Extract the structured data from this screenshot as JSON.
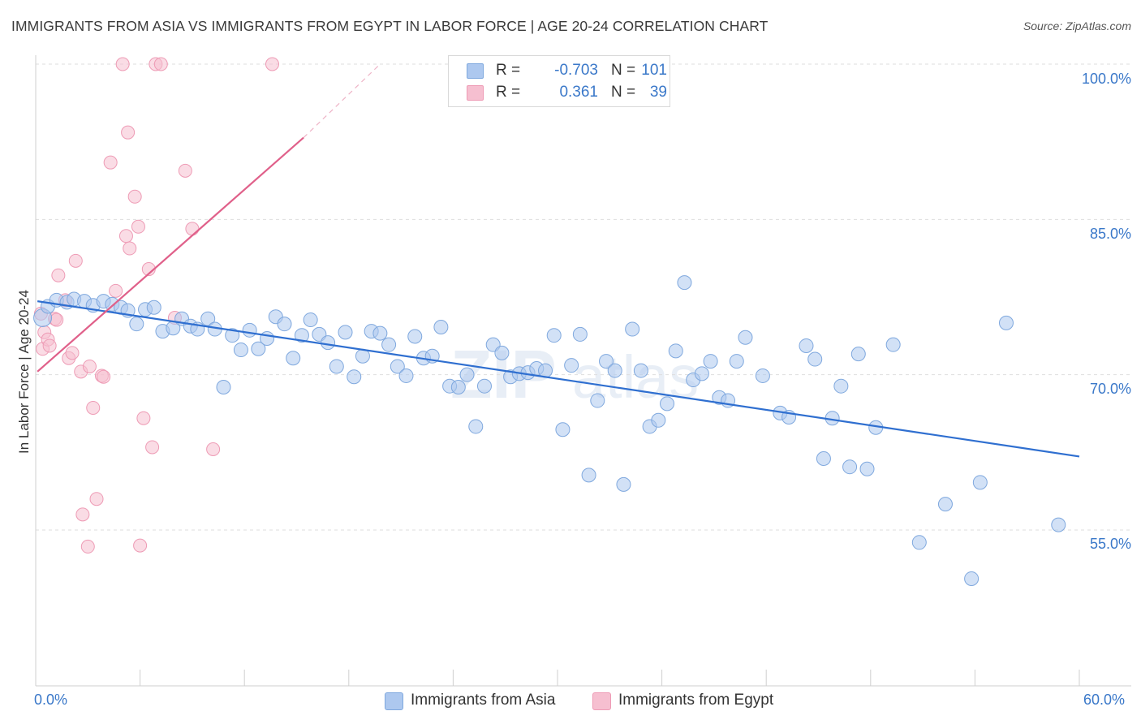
{
  "header": {
    "title": "IMMIGRANTS FROM ASIA VS IMMIGRANTS FROM EGYPT IN LABOR FORCE | AGE 20-24 CORRELATION CHART",
    "source": "Source: ZipAtlas.com"
  },
  "legend": {
    "rows": [
      {
        "r_label": "R =",
        "r_value": "-0.703",
        "n_label": "N =",
        "n_value": "101"
      },
      {
        "r_label": "R =",
        "r_value": "0.361",
        "n_label": "N =",
        "n_value": "39"
      }
    ]
  },
  "colors": {
    "asia_fill": "#adc8ef",
    "asia_stroke": "#7fa8de",
    "asia_line": "#2f6fd0",
    "egypt_fill": "#f6bfd0",
    "egypt_stroke": "#ee9bb5",
    "egypt_line": "#e0608a",
    "tick_text": "#3a78c9",
    "grid": "#dedede"
  },
  "chart_data": {
    "type": "scatter",
    "title": "IMMIGRANTS FROM ASIA VS IMMIGRANTS FROM EGYPT IN LABOR FORCE | AGE 20-24 CORRELATION CHART",
    "xlabel": "",
    "ylabel": "In Labor Force | Age 20-24",
    "xlim": [
      0,
      60
    ],
    "ylim": [
      41,
      101
    ],
    "x_tick_labels": [
      "0.0%",
      "60.0%"
    ],
    "y_ticks": [
      {
        "value": 100,
        "label": "100.0%"
      },
      {
        "value": 85,
        "label": "85.0%"
      },
      {
        "value": 70,
        "label": "70.0%"
      },
      {
        "value": 55,
        "label": "55.0%"
      }
    ],
    "legend_position": "bottom-center",
    "series": [
      {
        "name": "Immigrants from Asia",
        "r": -0.703,
        "n": 101,
        "trend": {
          "x": [
            0.1,
            60.0
          ],
          "y": [
            77.1,
            62.1
          ],
          "dashed_extension": false
        },
        "points": [
          [
            0.4,
            75.5
          ],
          [
            0.7,
            76.6
          ],
          [
            1.2,
            77.2
          ],
          [
            1.8,
            77.0
          ],
          [
            2.2,
            77.3
          ],
          [
            2.8,
            77.1
          ],
          [
            3.3,
            76.7
          ],
          [
            3.9,
            77.1
          ],
          [
            4.4,
            76.8
          ],
          [
            4.9,
            76.5
          ],
          [
            5.3,
            76.2
          ],
          [
            5.8,
            74.9
          ],
          [
            6.3,
            76.3
          ],
          [
            6.8,
            76.5
          ],
          [
            7.3,
            74.2
          ],
          [
            7.9,
            74.5
          ],
          [
            8.4,
            75.4
          ],
          [
            8.9,
            74.7
          ],
          [
            9.3,
            74.4
          ],
          [
            9.9,
            75.4
          ],
          [
            10.3,
            74.4
          ],
          [
            10.8,
            68.8
          ],
          [
            11.3,
            73.8
          ],
          [
            11.8,
            72.4
          ],
          [
            12.3,
            74.3
          ],
          [
            12.8,
            72.5
          ],
          [
            13.3,
            73.5
          ],
          [
            13.8,
            75.6
          ],
          [
            14.3,
            74.9
          ],
          [
            14.8,
            71.6
          ],
          [
            15.3,
            73.8
          ],
          [
            15.8,
            75.3
          ],
          [
            16.3,
            73.9
          ],
          [
            16.8,
            73.1
          ],
          [
            17.3,
            70.8
          ],
          [
            17.8,
            74.1
          ],
          [
            18.3,
            69.8
          ],
          [
            18.8,
            71.8
          ],
          [
            19.3,
            74.2
          ],
          [
            19.8,
            74.0
          ],
          [
            20.3,
            72.9
          ],
          [
            20.8,
            70.8
          ],
          [
            21.3,
            69.9
          ],
          [
            21.8,
            73.7
          ],
          [
            22.3,
            71.6
          ],
          [
            22.8,
            71.8
          ],
          [
            23.3,
            74.6
          ],
          [
            23.8,
            68.9
          ],
          [
            24.3,
            68.8
          ],
          [
            24.8,
            70.0
          ],
          [
            25.3,
            65.0
          ],
          [
            25.8,
            68.9
          ],
          [
            26.3,
            72.9
          ],
          [
            26.8,
            72.1
          ],
          [
            27.3,
            69.8
          ],
          [
            27.8,
            70.1
          ],
          [
            28.3,
            70.2
          ],
          [
            28.8,
            70.6
          ],
          [
            29.3,
            70.4
          ],
          [
            29.8,
            73.8
          ],
          [
            30.3,
            64.7
          ],
          [
            30.8,
            70.9
          ],
          [
            31.3,
            73.9
          ],
          [
            31.8,
            60.3
          ],
          [
            32.3,
            67.5
          ],
          [
            32.8,
            71.3
          ],
          [
            33.3,
            70.4
          ],
          [
            33.8,
            59.4
          ],
          [
            34.3,
            74.4
          ],
          [
            34.8,
            70.4
          ],
          [
            35.3,
            65.0
          ],
          [
            35.8,
            65.6
          ],
          [
            36.3,
            67.2
          ],
          [
            36.8,
            72.3
          ],
          [
            37.3,
            78.9
          ],
          [
            37.8,
            69.5
          ],
          [
            38.3,
            70.1
          ],
          [
            38.8,
            71.3
          ],
          [
            39.3,
            67.8
          ],
          [
            39.8,
            67.5
          ],
          [
            40.3,
            71.3
          ],
          [
            40.8,
            73.6
          ],
          [
            41.8,
            69.9
          ],
          [
            42.8,
            66.3
          ],
          [
            43.3,
            65.9
          ],
          [
            44.3,
            72.8
          ],
          [
            44.8,
            71.5
          ],
          [
            45.3,
            61.9
          ],
          [
            45.8,
            65.8
          ],
          [
            46.3,
            68.9
          ],
          [
            46.8,
            61.1
          ],
          [
            47.3,
            72.0
          ],
          [
            47.8,
            60.9
          ],
          [
            48.3,
            64.9
          ],
          [
            49.3,
            72.9
          ],
          [
            50.8,
            53.8
          ],
          [
            52.3,
            57.5
          ],
          [
            53.8,
            50.3
          ],
          [
            54.3,
            59.6
          ],
          [
            55.8,
            75.0
          ],
          [
            58.8,
            55.5
          ]
        ]
      },
      {
        "name": "Immigrants from Egypt",
        "r": 0.361,
        "n": 39,
        "trend": {
          "x": [
            0.1,
            15.4
          ],
          "y": [
            70.3,
            92.9
          ],
          "dashed_extension": {
            "x": [
              15.4,
              19.8
            ],
            "y": [
              92.9,
              100.0
            ]
          }
        },
        "points": [
          [
            0.3,
            75.9
          ],
          [
            0.4,
            72.5
          ],
          [
            0.5,
            74.1
          ],
          [
            0.7,
            73.4
          ],
          [
            0.8,
            72.8
          ],
          [
            1.1,
            75.4
          ],
          [
            1.2,
            75.3
          ],
          [
            1.3,
            79.6
          ],
          [
            1.7,
            77.2
          ],
          [
            1.9,
            71.6
          ],
          [
            2.1,
            72.1
          ],
          [
            2.3,
            81.0
          ],
          [
            2.6,
            70.3
          ],
          [
            3.1,
            70.8
          ],
          [
            3.3,
            66.8
          ],
          [
            3.5,
            58.0
          ],
          [
            3.8,
            69.9
          ],
          [
            3.9,
            69.8
          ],
          [
            2.7,
            56.5
          ],
          [
            3.0,
            53.4
          ],
          [
            4.3,
            90.5
          ],
          [
            4.6,
            78.1
          ],
          [
            5.0,
            100.0
          ],
          [
            5.2,
            83.4
          ],
          [
            5.3,
            93.4
          ],
          [
            5.4,
            82.2
          ],
          [
            5.7,
            87.2
          ],
          [
            5.9,
            84.3
          ],
          [
            6.0,
            53.5
          ],
          [
            6.2,
            65.8
          ],
          [
            6.5,
            80.2
          ],
          [
            6.7,
            63.0
          ],
          [
            6.9,
            100.0
          ],
          [
            7.2,
            100.0
          ],
          [
            8.0,
            75.5
          ],
          [
            8.6,
            89.7
          ],
          [
            9.0,
            84.1
          ],
          [
            10.2,
            62.8
          ],
          [
            13.6,
            100.0
          ]
        ]
      }
    ]
  },
  "bottom_legend": [
    {
      "label": "Immigrants from Asia"
    },
    {
      "label": "Immigrants from Egypt"
    }
  ]
}
